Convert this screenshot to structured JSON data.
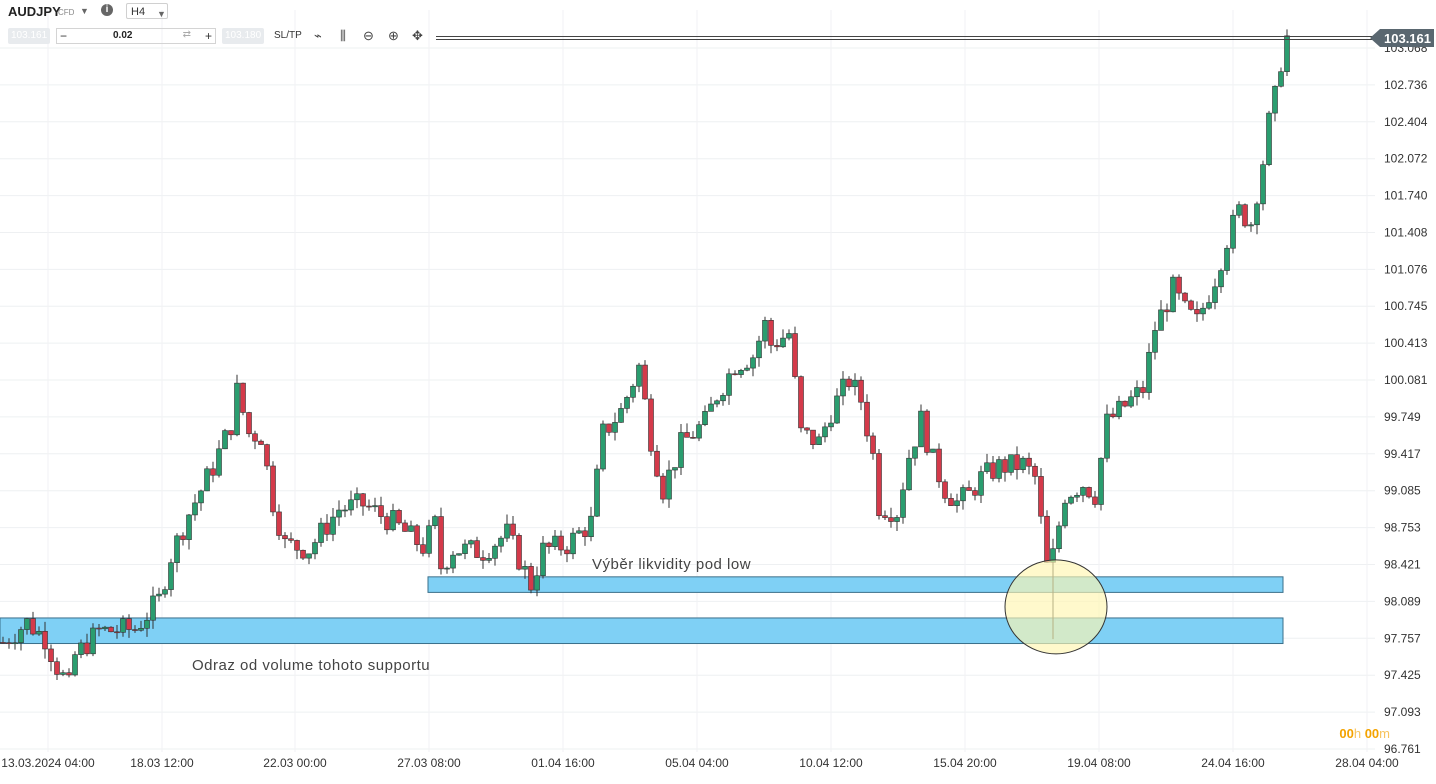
{
  "toolbar": {
    "symbol": "AUDJPY",
    "symbol_type": "CFD",
    "info_icon": "info-icon",
    "timeframe": "H4",
    "bid": "103.161",
    "ask": "103.180",
    "quantity": "0.02",
    "minus": "−",
    "plus": "+",
    "sltp": "SL/TP"
  },
  "timer": {
    "hours": "00",
    "h": "h",
    "minutes": "00",
    "m": "m"
  },
  "colors": {
    "up": "#2a9d6f",
    "down": "#d43a4a",
    "zone_fill": "#7fd0f5",
    "zone_border": "#3a6f8a",
    "circle_fill": "#fff6b0",
    "price_tag": "#5a6770"
  },
  "chart_data": {
    "type": "candlestick",
    "symbol": "AUDJPY",
    "timeframe": "H4",
    "ylim": [
      96.761,
      103.16
    ],
    "y_ticks": [
      "103.068",
      "102.736",
      "102.404",
      "102.072",
      "101.740",
      "101.408",
      "101.076",
      "100.745",
      "100.413",
      "100.081",
      "99.749",
      "99.417",
      "99.085",
      "98.753",
      "98.421",
      "98.089",
      "97.757",
      "97.425",
      "97.093",
      "96.761"
    ],
    "x_ticks": [
      "13.03.2024 04:00",
      "18.03 12:00",
      "22.03 00:00",
      "27.03 08:00",
      "01.04 16:00",
      "05.04 04:00",
      "10.04 12:00",
      "15.04 20:00",
      "19.04 08:00",
      "24.04 16:00",
      "28.04 04:00"
    ],
    "current_price": "103.161",
    "candle_count": 215,
    "close_path": [
      [
        0,
        97.72
      ],
      [
        4,
        97.9
      ],
      [
        7,
        97.76
      ],
      [
        9,
        97.5
      ],
      [
        11,
        97.32
      ],
      [
        12,
        97.6
      ],
      [
        16,
        97.82
      ],
      [
        22,
        97.84
      ],
      [
        26,
        98.1
      ],
      [
        28,
        98.5
      ],
      [
        31,
        98.88
      ],
      [
        35,
        99.3
      ],
      [
        38,
        99.68
      ],
      [
        39,
        99.98
      ],
      [
        41,
        99.6
      ],
      [
        43,
        99.58
      ],
      [
        45,
        98.98
      ],
      [
        47,
        98.6
      ],
      [
        51,
        98.56
      ],
      [
        56,
        98.92
      ],
      [
        60,
        98.96
      ],
      [
        65,
        98.8
      ],
      [
        70,
        98.58
      ],
      [
        72,
        98.78
      ],
      [
        73,
        98.4
      ],
      [
        75,
        98.56
      ],
      [
        80,
        98.54
      ],
      [
        84,
        98.7
      ],
      [
        88,
        98.24
      ],
      [
        90,
        98.55
      ],
      [
        94,
        98.6
      ],
      [
        98,
        98.8
      ],
      [
        100,
        99.6
      ],
      [
        103,
        99.8
      ],
      [
        106,
        100.2
      ],
      [
        108,
        99.55
      ],
      [
        110,
        99.1
      ],
      [
        113,
        99.5
      ],
      [
        117,
        99.7
      ],
      [
        119,
        99.95
      ],
      [
        122,
        100.22
      ],
      [
        125,
        100.3
      ],
      [
        127,
        100.58
      ],
      [
        128,
        100.4
      ],
      [
        131,
        100.5
      ],
      [
        133,
        99.6
      ],
      [
        136,
        99.52
      ],
      [
        138,
        99.8
      ],
      [
        141,
        100.08
      ],
      [
        143,
        99.9
      ],
      [
        145,
        99.4
      ],
      [
        146,
        98.95
      ],
      [
        149,
        98.9
      ],
      [
        151,
        99.4
      ],
      [
        153,
        99.72
      ],
      [
        155,
        99.35
      ],
      [
        157,
        99.1
      ],
      [
        159,
        98.98
      ],
      [
        161,
        99.05
      ],
      [
        163,
        99.2
      ],
      [
        166,
        99.3
      ],
      [
        170,
        99.32
      ],
      [
        172,
        99.2
      ],
      [
        174,
        98.4
      ],
      [
        175,
        98.5
      ],
      [
        177,
        99.05
      ],
      [
        180,
        99.15
      ],
      [
        182,
        99.05
      ],
      [
        184,
        99.7
      ],
      [
        187,
        99.85
      ],
      [
        190,
        100.0
      ],
      [
        192,
        100.55
      ],
      [
        195,
        100.9
      ],
      [
        197,
        100.7
      ],
      [
        199,
        100.6
      ],
      [
        202,
        101.0
      ],
      [
        204,
        101.35
      ],
      [
        206,
        101.6
      ],
      [
        208,
        101.5
      ],
      [
        210,
        102.05
      ],
      [
        211,
        102.4
      ],
      [
        212,
        102.62
      ],
      [
        213,
        102.95
      ],
      [
        214,
        103.16
      ]
    ],
    "wicks_extreme": [
      {
        "index": 175,
        "low": 97.75
      }
    ],
    "zones": [
      {
        "name": "liquidity-zone",
        "from": 98.17,
        "to": 98.31
      },
      {
        "name": "volume-support-zone",
        "from": 97.71,
        "to": 97.94
      }
    ],
    "annotations": [
      {
        "text": "Výběr likvidity pod low"
      },
      {
        "text": "Odraz od volume tohoto supportu"
      }
    ],
    "highlight_circle": {
      "index": 175,
      "center_price": 98.04
    }
  }
}
